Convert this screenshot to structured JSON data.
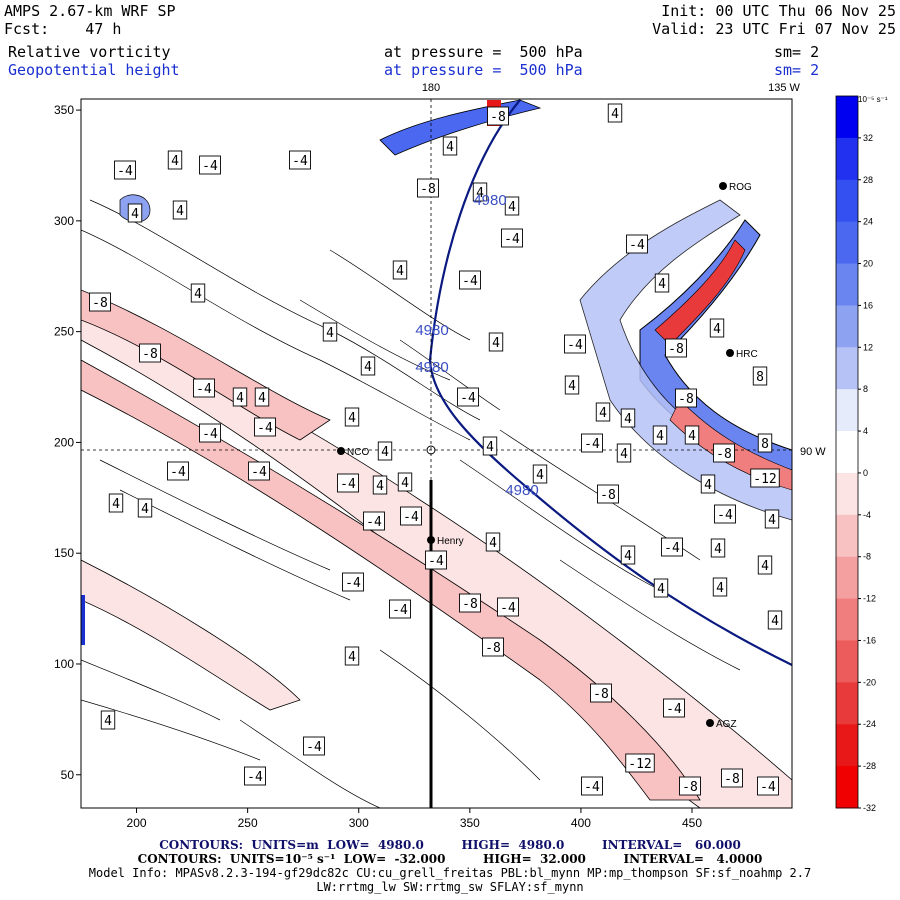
{
  "header": {
    "model": "AMPS 2.67-km WRF SP",
    "fcst": "Fcst:    47 h",
    "init": "Init: 00 UTC Thu 06 Nov 25",
    "valid": "Valid: 23 UTC Fri 07 Nov 25",
    "field1_name": "Relative vorticity",
    "field1_level": "at pressure =  500 hPa",
    "field1_sm": "sm= 2",
    "field2_name": "Geopotential height",
    "field2_level": "at pressure =  500 hPa",
    "field2_sm": "sm= 2"
  },
  "map": {
    "x_axis": {
      "min": 175,
      "max": 495,
      "ticks": [
        "200",
        "250",
        "300",
        "350",
        "400",
        "450"
      ]
    },
    "y_axis": {
      "min": 35,
      "max": 355,
      "ticks": [
        "50",
        "100",
        "150",
        "200",
        "250",
        "300",
        "350"
      ]
    },
    "top_labels": {
      "lon180": "180",
      "lon135": "135 W"
    },
    "right_label": "90 W",
    "height_contour": {
      "units": "m",
      "value": 4980,
      "labels": [
        "4980",
        "4980",
        "4980",
        "4980"
      ]
    },
    "vorticity_labels": [
      "4",
      "-4",
      "-8",
      "8",
      "-12"
    ],
    "stations": [
      "NCO",
      "Henry",
      "ROG",
      "HRC",
      "AGZ"
    ]
  },
  "colorbar": {
    "title": "10⁻⁵ s⁻¹",
    "ticks": [
      "32",
      "28",
      "24",
      "20",
      "16",
      "12",
      "8",
      "4",
      "0",
      "-4",
      "-8",
      "-12",
      "-16",
      "-20",
      "-24",
      "-28",
      "-32"
    ],
    "colors": [
      "#0000f0",
      "#2230f0",
      "#3450f0",
      "#4a68f0",
      "#6a84f0",
      "#8ea2f2",
      "#b6c2f6",
      "#e6ebfc",
      "#ffffff",
      "#fde4e4",
      "#f8c2c2",
      "#f4a0a0",
      "#f07e7e",
      "#ec5c5c",
      "#e83a3a",
      "#e81818",
      "#f00000"
    ]
  },
  "footer": {
    "contours1": "CONTOURS:  UNITS=m  LOW=  4980.0         HIGH=  4980.0         INTERVAL=   60.000",
    "contours2": "CONTOURS:  UNITS=10⁻⁵ s⁻¹  LOW=  -32.000         HIGH=  32.000         INTERVAL=   4.0000",
    "model_info": "Model Info: MPASv8.2.3-194-gf29dc82c CU:cu_grell_freitas PBL:bl_mynn MP:mp_thompson SF:sf_noahmp 2.7",
    "model_info2": "LW:rrtmg_lw SW:rrtmg_sw SFLAY:sf_mynn"
  }
}
